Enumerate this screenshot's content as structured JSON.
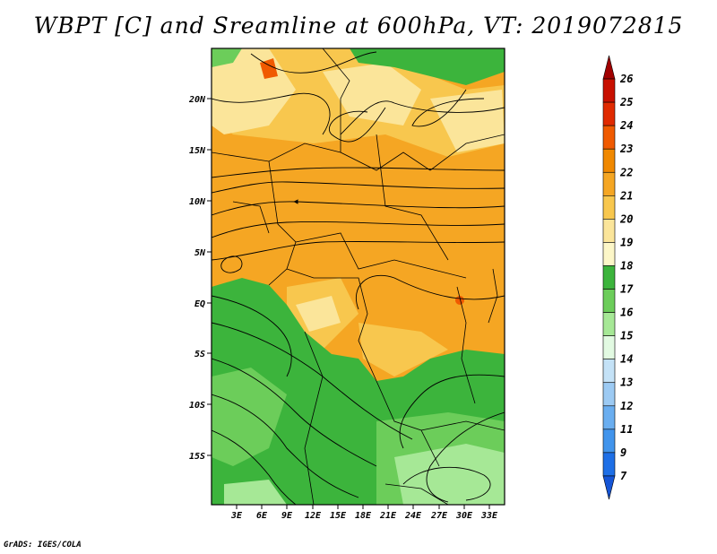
{
  "title": "WBPT [C] and Sreamline at 600hPa, VT: 2019072815",
  "footer": "GrADS: IGES/COLA",
  "lat_ticks": [
    "20N",
    "15N",
    "10N",
    "5N",
    "EQ",
    "5S",
    "10S",
    "15S"
  ],
  "lon_ticks": [
    "3E",
    "6E",
    "9E",
    "12E",
    "15E",
    "18E",
    "21E",
    "24E",
    "27E",
    "30E",
    "33E"
  ],
  "colorbar": {
    "levels": [
      "26",
      "25",
      "24",
      "23",
      "22",
      "21",
      "20",
      "19",
      "18",
      "17",
      "16",
      "15",
      "14",
      "13",
      "12",
      "11",
      "9",
      "7"
    ],
    "colors": [
      "#a10000",
      "#c81000",
      "#e02a00",
      "#f05a00",
      "#f08800",
      "#f5a623",
      "#f8c74e",
      "#fbe59a",
      "#fdf7c8",
      "#3cb43c",
      "#6ccd5a",
      "#a6e896",
      "#e2fae2",
      "#c4e2f7",
      "#9ccaf3",
      "#6aaef0",
      "#4194ec",
      "#1e6fe6",
      "#1555d6"
    ]
  },
  "chart_data": {
    "type": "heatmap",
    "variable": "WBPT [C] and Sreamline at 600hPa",
    "valid_time": "2019072815",
    "lat_range": [
      -19.5,
      24.5
    ],
    "lon_range": [
      0,
      34
    ],
    "regions": [
      {
        "area": "north of ~3N, 0E-34E",
        "wbpt_c": 21
      },
      {
        "area": "northern edge near 22N",
        "wbpt_c": 17
      },
      {
        "area": "equatorial Congo basin 0-5S, 12E-30E",
        "wbpt_c": 20
      },
      {
        "area": "south of ~5S",
        "wbpt_c": 17
      },
      {
        "area": "southeast near 15-19S, 25-32E",
        "wbpt_c": 16
      }
    ]
  }
}
